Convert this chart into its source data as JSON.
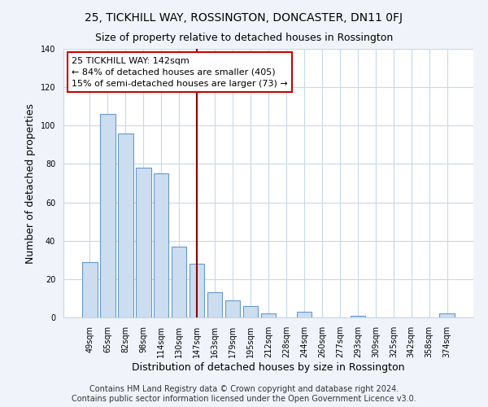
{
  "title": "25, TICKHILL WAY, ROSSINGTON, DONCASTER, DN11 0FJ",
  "subtitle": "Size of property relative to detached houses in Rossington",
  "xlabel": "Distribution of detached houses by size in Rossington",
  "ylabel": "Number of detached properties",
  "bar_labels": [
    "49sqm",
    "65sqm",
    "82sqm",
    "98sqm",
    "114sqm",
    "130sqm",
    "147sqm",
    "163sqm",
    "179sqm",
    "195sqm",
    "212sqm",
    "228sqm",
    "244sqm",
    "260sqm",
    "277sqm",
    "293sqm",
    "309sqm",
    "325sqm",
    "342sqm",
    "358sqm",
    "374sqm"
  ],
  "bar_values": [
    29,
    106,
    96,
    78,
    75,
    37,
    28,
    13,
    9,
    6,
    2,
    0,
    3,
    0,
    0,
    1,
    0,
    0,
    0,
    0,
    2
  ],
  "bar_color": "#ccddf0",
  "bar_edge_color": "#6699cc",
  "vline_x": 6,
  "vline_color": "#8b0000",
  "annotation_text": "25 TICKHILL WAY: 142sqm\n← 84% of detached houses are smaller (405)\n15% of semi-detached houses are larger (73) →",
  "annotation_box_color": "#ffffff",
  "annotation_box_edge": "#cc0000",
  "ylim": [
    0,
    140
  ],
  "yticks": [
    0,
    20,
    40,
    60,
    80,
    100,
    120,
    140
  ],
  "footer1": "Contains HM Land Registry data © Crown copyright and database right 2024.",
  "footer2": "Contains public sector information licensed under the Open Government Licence v3.0.",
  "background_color": "#f0f4fa",
  "plot_bg_color": "#ffffff",
  "grid_color": "#c8d8e8",
  "title_fontsize": 10,
  "subtitle_fontsize": 9,
  "axis_label_fontsize": 9,
  "tick_fontsize": 7,
  "footer_fontsize": 7,
  "annot_fontsize": 8
}
